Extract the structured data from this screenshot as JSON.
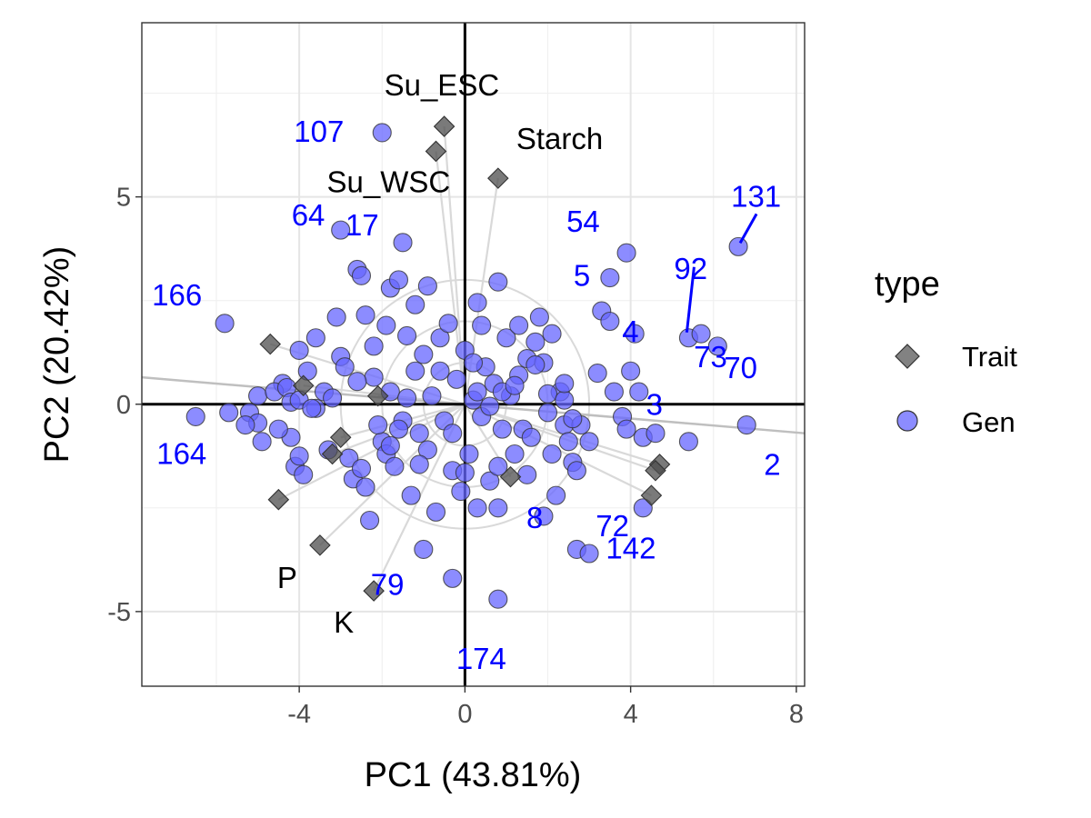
{
  "chart_data": {
    "type": "scatter",
    "xlabel": "PC1 (43.81%)",
    "ylabel": "PC2 (20.42%)",
    "xlim": [
      -7.8,
      8.2
    ],
    "ylim": [
      -6.8,
      9.2
    ],
    "x_ticks": [
      -4,
      0,
      4,
      8
    ],
    "y_ticks": [
      -5,
      0,
      5
    ],
    "x_tick_labels": [
      "-4",
      "0",
      "4",
      "8"
    ],
    "y_tick_labels": [
      "-5",
      "0",
      "5"
    ],
    "grid": true,
    "legend": {
      "title": "type",
      "position": "right",
      "entries": [
        {
          "label": "Trait",
          "shape": "diamond",
          "color": "#4d4d4d"
        },
        {
          "label": "Gen",
          "shape": "circle",
          "color": "#6666ff"
        }
      ]
    },
    "colors": {
      "trait": "#4d4d4d",
      "gen": "#6666ff",
      "gen_label": "#0000ff",
      "trait_label": "#000000"
    },
    "circle_radii": [
      1,
      2,
      3
    ],
    "traits": [
      {
        "label": "Su_ESC",
        "x": -0.5,
        "y": 6.7
      },
      {
        "label": "Su_WSC",
        "x": -0.7,
        "y": 6.1
      },
      {
        "label": "Starch",
        "x": 0.8,
        "y": 5.45
      },
      {
        "label": "",
        "x": -4.7,
        "y": 1.45
      },
      {
        "label": "",
        "x": -3.9,
        "y": 0.45
      },
      {
        "label": "",
        "x": -2.1,
        "y": 0.2
      },
      {
        "label": "",
        "x": -3.0,
        "y": -0.8
      },
      {
        "label": "",
        "x": -3.2,
        "y": -1.2
      },
      {
        "label": "",
        "x": 1.1,
        "y": -1.75
      },
      {
        "label": "",
        "x": 4.7,
        "y": -1.45
      },
      {
        "label": "",
        "x": 4.6,
        "y": -1.6
      },
      {
        "label": "",
        "x": 4.5,
        "y": -2.2
      },
      {
        "label": "",
        "x": -4.5,
        "y": -2.3
      },
      {
        "label": "P",
        "x": -3.5,
        "y": -3.4
      },
      {
        "label": "K",
        "x": -2.2,
        "y": -4.5
      }
    ],
    "gen_points": [
      {
        "x": -2.0,
        "y": 6.55,
        "label": "107"
      },
      {
        "x": 6.6,
        "y": 3.8,
        "label": "131"
      },
      {
        "x": -5.8,
        "y": 1.95,
        "label": "166"
      },
      {
        "x": -6.5,
        "y": -0.3,
        "label": "164"
      },
      {
        "x": 6.8,
        "y": -0.5,
        "label": "2"
      },
      {
        "x": 5.4,
        "y": 1.6,
        "label": "92"
      },
      {
        "x": 3.9,
        "y": 3.65,
        "label": "54"
      },
      {
        "x": 3.5,
        "y": 3.05,
        "label": "5"
      },
      {
        "x": 4.1,
        "y": 1.7,
        "label": "4"
      },
      {
        "x": 5.7,
        "y": 1.7,
        "label": "73"
      },
      {
        "x": 6.1,
        "y": 1.4,
        "label": "70"
      },
      {
        "x": 4.0,
        "y": 0.8,
        "label": "3"
      },
      {
        "x": 0.8,
        "y": -4.7,
        "label": "174"
      },
      {
        "x": 2.7,
        "y": -3.5,
        "label": "142"
      },
      {
        "x": -0.3,
        "y": -4.2,
        "label": "79"
      },
      {
        "x": 1.9,
        "y": -2.7,
        "label": "8"
      },
      {
        "x": 4.3,
        "y": -2.5,
        "label": "72"
      },
      {
        "x": -1.5,
        "y": 3.9,
        "label": "17"
      },
      {
        "x": -3.0,
        "y": 4.2,
        "label": "64"
      },
      {
        "x": -5.2,
        "y": -0.2,
        "label": ""
      },
      {
        "x": -5.0,
        "y": -0.45,
        "label": ""
      },
      {
        "x": -4.4,
        "y": 0.5,
        "label": ""
      },
      {
        "x": -4.2,
        "y": -0.8,
        "label": ""
      },
      {
        "x": -4.1,
        "y": -1.5,
        "label": ""
      },
      {
        "x": -4.0,
        "y": -1.25,
        "label": ""
      },
      {
        "x": -3.9,
        "y": -1.7,
        "label": ""
      },
      {
        "x": -4.0,
        "y": 1.3,
        "label": ""
      },
      {
        "x": -3.8,
        "y": 0.8,
        "label": ""
      },
      {
        "x": -3.6,
        "y": -0.1,
        "label": ""
      },
      {
        "x": -3.4,
        "y": 0.3,
        "label": ""
      },
      {
        "x": -3.3,
        "y": -1.1,
        "label": ""
      },
      {
        "x": -3.1,
        "y": 2.1,
        "label": ""
      },
      {
        "x": -3.0,
        "y": 1.15,
        "label": ""
      },
      {
        "x": -2.9,
        "y": 0.9,
        "label": ""
      },
      {
        "x": -2.8,
        "y": -1.3,
        "label": ""
      },
      {
        "x": -2.7,
        "y": -1.8,
        "label": ""
      },
      {
        "x": -2.6,
        "y": 3.25,
        "label": ""
      },
      {
        "x": -2.5,
        "y": 3.1,
        "label": ""
      },
      {
        "x": -2.4,
        "y": 2.15,
        "label": ""
      },
      {
        "x": -2.4,
        "y": -2.0,
        "label": ""
      },
      {
        "x": -2.3,
        "y": -2.8,
        "label": ""
      },
      {
        "x": -2.2,
        "y": 0.65,
        "label": ""
      },
      {
        "x": -2.2,
        "y": 1.4,
        "label": ""
      },
      {
        "x": -2.0,
        "y": -0.9,
        "label": ""
      },
      {
        "x": -1.9,
        "y": -1.2,
        "label": ""
      },
      {
        "x": -1.8,
        "y": 2.8,
        "label": ""
      },
      {
        "x": -1.8,
        "y": 0.3,
        "label": ""
      },
      {
        "x": -1.7,
        "y": -1.5,
        "label": ""
      },
      {
        "x": -1.6,
        "y": 3.0,
        "label": ""
      },
      {
        "x": -1.5,
        "y": -0.4,
        "label": ""
      },
      {
        "x": -1.4,
        "y": 1.65,
        "label": ""
      },
      {
        "x": -1.3,
        "y": -2.2,
        "label": ""
      },
      {
        "x": -1.2,
        "y": 0.8,
        "label": ""
      },
      {
        "x": -1.1,
        "y": -0.7,
        "label": ""
      },
      {
        "x": -1.0,
        "y": 1.2,
        "label": ""
      },
      {
        "x": -1.0,
        "y": -3.5,
        "label": ""
      },
      {
        "x": -0.9,
        "y": 2.85,
        "label": ""
      },
      {
        "x": -0.9,
        "y": -1.1,
        "label": ""
      },
      {
        "x": -0.8,
        "y": 0.2,
        "label": ""
      },
      {
        "x": -0.7,
        "y": -2.6,
        "label": ""
      },
      {
        "x": -0.6,
        "y": 1.6,
        "label": ""
      },
      {
        "x": -0.5,
        "y": -0.4,
        "label": ""
      },
      {
        "x": -0.4,
        "y": 1.95,
        "label": ""
      },
      {
        "x": -0.3,
        "y": -1.6,
        "label": ""
      },
      {
        "x": -0.2,
        "y": 0.6,
        "label": ""
      },
      {
        "x": -0.1,
        "y": -2.1,
        "label": ""
      },
      {
        "x": 0.0,
        "y": 1.3,
        "label": ""
      },
      {
        "x": 0.1,
        "y": -1.2,
        "label": ""
      },
      {
        "x": 0.2,
        "y": 0.1,
        "label": ""
      },
      {
        "x": 0.3,
        "y": 2.45,
        "label": ""
      },
      {
        "x": 0.4,
        "y": -0.3,
        "label": ""
      },
      {
        "x": 0.5,
        "y": 0.9,
        "label": ""
      },
      {
        "x": 0.6,
        "y": -1.85,
        "label": ""
      },
      {
        "x": 0.7,
        "y": 0.5,
        "label": ""
      },
      {
        "x": 0.8,
        "y": 2.95,
        "label": ""
      },
      {
        "x": 0.8,
        "y": -2.5,
        "label": ""
      },
      {
        "x": 0.9,
        "y": -0.6,
        "label": ""
      },
      {
        "x": 1.0,
        "y": 1.6,
        "label": ""
      },
      {
        "x": 1.1,
        "y": 0.2,
        "label": ""
      },
      {
        "x": 1.2,
        "y": -1.2,
        "label": ""
      },
      {
        "x": 1.3,
        "y": 0.7,
        "label": ""
      },
      {
        "x": 1.4,
        "y": -0.6,
        "label": ""
      },
      {
        "x": 1.5,
        "y": 1.1,
        "label": ""
      },
      {
        "x": 1.6,
        "y": -0.8,
        "label": ""
      },
      {
        "x": 1.7,
        "y": 1.5,
        "label": ""
      },
      {
        "x": 1.8,
        "y": 2.1,
        "label": ""
      },
      {
        "x": 1.9,
        "y": 1.0,
        "label": ""
      },
      {
        "x": 2.0,
        "y": -0.2,
        "label": ""
      },
      {
        "x": 2.1,
        "y": -1.2,
        "label": ""
      },
      {
        "x": 2.2,
        "y": -2.2,
        "label": ""
      },
      {
        "x": 2.3,
        "y": 0.3,
        "label": ""
      },
      {
        "x": 2.4,
        "y": -0.5,
        "label": ""
      },
      {
        "x": 2.5,
        "y": -0.9,
        "label": ""
      },
      {
        "x": 2.6,
        "y": -1.4,
        "label": ""
      },
      {
        "x": 2.7,
        "y": -1.6,
        "label": ""
      },
      {
        "x": 2.8,
        "y": -0.5,
        "label": ""
      },
      {
        "x": 3.0,
        "y": -0.9,
        "label": ""
      },
      {
        "x": 3.0,
        "y": -3.6,
        "label": ""
      },
      {
        "x": 3.2,
        "y": 0.75,
        "label": ""
      },
      {
        "x": 3.3,
        "y": 2.25,
        "label": ""
      },
      {
        "x": 3.5,
        "y": 2.0,
        "label": ""
      },
      {
        "x": 3.6,
        "y": 0.3,
        "label": ""
      },
      {
        "x": 3.8,
        "y": -0.3,
        "label": ""
      },
      {
        "x": 3.9,
        "y": -0.6,
        "label": ""
      },
      {
        "x": 4.2,
        "y": 0.3,
        "label": ""
      },
      {
        "x": 4.3,
        "y": -0.8,
        "label": ""
      },
      {
        "x": 4.6,
        "y": -0.7,
        "label": ""
      },
      {
        "x": 5.4,
        "y": -0.9,
        "label": ""
      },
      {
        "x": -5.7,
        "y": -0.2,
        "label": ""
      },
      {
        "x": -5.0,
        "y": 0.2,
        "label": ""
      },
      {
        "x": -4.6,
        "y": 0.3,
        "label": ""
      },
      {
        "x": -4.5,
        "y": -0.6,
        "label": ""
      },
      {
        "x": -4.3,
        "y": 0.4,
        "label": ""
      },
      {
        "x": -4.2,
        "y": 0.05,
        "label": ""
      },
      {
        "x": -4.0,
        "y": 0.1,
        "label": ""
      },
      {
        "x": -3.7,
        "y": -0.1,
        "label": ""
      },
      {
        "x": -3.2,
        "y": 0.15,
        "label": ""
      },
      {
        "x": -2.6,
        "y": 0.55,
        "label": ""
      },
      {
        "x": -2.1,
        "y": -0.5,
        "label": ""
      },
      {
        "x": -1.6,
        "y": -0.6,
        "label": ""
      },
      {
        "x": -1.4,
        "y": 0.15,
        "label": ""
      },
      {
        "x": 0.3,
        "y": 0.3,
        "label": ""
      },
      {
        "x": 0.6,
        "y": -0.05,
        "label": ""
      },
      {
        "x": 0.9,
        "y": 0.3,
        "label": ""
      },
      {
        "x": 1.2,
        "y": 0.45,
        "label": ""
      },
      {
        "x": 1.7,
        "y": 0.95,
        "label": ""
      },
      {
        "x": 2.0,
        "y": 0.25,
        "label": ""
      },
      {
        "x": 2.4,
        "y": 0.1,
        "label": ""
      },
      {
        "x": 2.6,
        "y": -0.35,
        "label": ""
      },
      {
        "x": -0.6,
        "y": 0.8,
        "label": ""
      },
      {
        "x": -0.3,
        "y": -0.7,
        "label": ""
      },
      {
        "x": -1.1,
        "y": -1.45,
        "label": ""
      },
      {
        "x": -1.8,
        "y": -1.0,
        "label": ""
      },
      {
        "x": -2.5,
        "y": -1.55,
        "label": ""
      },
      {
        "x": 0.0,
        "y": -1.65,
        "label": ""
      },
      {
        "x": 0.3,
        "y": -2.5,
        "label": ""
      },
      {
        "x": 0.8,
        "y": -1.5,
        "label": ""
      },
      {
        "x": 1.5,
        "y": -1.7,
        "label": ""
      },
      {
        "x": -1.9,
        "y": 1.9,
        "label": ""
      },
      {
        "x": -1.2,
        "y": 2.4,
        "label": ""
      },
      {
        "x": 0.4,
        "y": 1.9,
        "label": ""
      },
      {
        "x": 1.3,
        "y": 1.9,
        "label": ""
      },
      {
        "x": -3.6,
        "y": 1.6,
        "label": ""
      },
      {
        "x": -4.9,
        "y": -0.9,
        "label": ""
      },
      {
        "x": -5.3,
        "y": -0.5,
        "label": ""
      },
      {
        "x": 2.1,
        "y": 1.7,
        "label": ""
      },
      {
        "x": 2.4,
        "y": 0.5,
        "label": ""
      },
      {
        "x": 0.2,
        "y": 1.0,
        "label": ""
      }
    ]
  }
}
